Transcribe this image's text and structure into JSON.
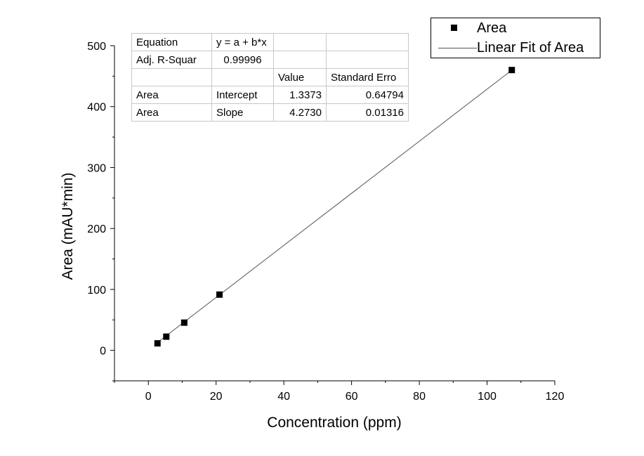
{
  "chart_data": {
    "type": "scatter",
    "xlabel": "Concentration (ppm)",
    "ylabel": "Area (mAU*min)",
    "xlim": [
      -10,
      120
    ],
    "ylim": [
      -50,
      500
    ],
    "x_ticks": [
      0,
      20,
      40,
      60,
      80,
      100,
      120
    ],
    "y_ticks": [
      0,
      100,
      200,
      300,
      400,
      500
    ],
    "x_tick_labels": [
      "0",
      "20",
      "40",
      "60",
      "80",
      "100",
      "120"
    ],
    "y_tick_labels": [
      "0",
      "100",
      "200",
      "300",
      "400",
      "500"
    ],
    "grid": false,
    "legend_position": "top-right",
    "series": [
      {
        "name": "Area",
        "type": "scatter",
        "marker": "square",
        "color": "#000000",
        "x": [
          2.7,
          5.3,
          10.6,
          21.0,
          107.3
        ],
        "y": [
          11.5,
          22.5,
          45.5,
          91.5,
          460.0
        ]
      },
      {
        "name": "Linear Fit of Area",
        "type": "line",
        "color": "#555555",
        "intercept": 1.3373,
        "slope": 4.273,
        "x_range": [
          2.7,
          107.3
        ]
      }
    ],
    "fit_table": {
      "equation_label": "Equation",
      "equation": "y = a + b*x",
      "adj_r_label": "Adj. R-Squar",
      "adj_r_value": "0.99996",
      "value_header": "Value",
      "stderr_header": "Standard Erro",
      "rows": [
        {
          "name": "Area",
          "param": "Intercept",
          "value": "1.3373",
          "stderr": "0.64794"
        },
        {
          "name": "Area",
          "param": "Slope",
          "value": "4.2730",
          "stderr": "0.01316"
        }
      ]
    }
  }
}
